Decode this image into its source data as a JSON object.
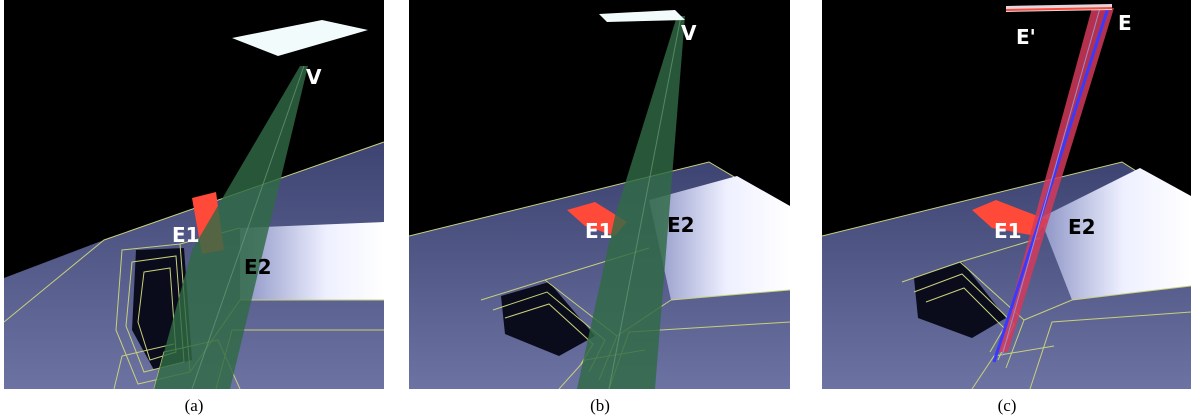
{
  "figure": {
    "panels": [
      {
        "id": "a",
        "caption": "(a)",
        "labels": {
          "v": "V",
          "e1": "E1",
          "e2": "E2"
        }
      },
      {
        "id": "b",
        "caption": "(b)",
        "labels": {
          "v": "V",
          "e1": "E1",
          "e2": "E2"
        }
      },
      {
        "id": "c",
        "caption": "(c)",
        "labels": {
          "e_prime": "E'",
          "e": "E",
          "e1": "E1",
          "e2": "E2"
        }
      }
    ]
  },
  "colors": {
    "background": "#000000",
    "floor": "#5b6290",
    "wire": "#c8d07a",
    "light_source": "#f2fbfb",
    "shadow_volume": "#2f6a44",
    "edge_highlight": "#ff4a3a",
    "segment_blue": "#3a3aff",
    "segment_red": "#d23a5a"
  }
}
